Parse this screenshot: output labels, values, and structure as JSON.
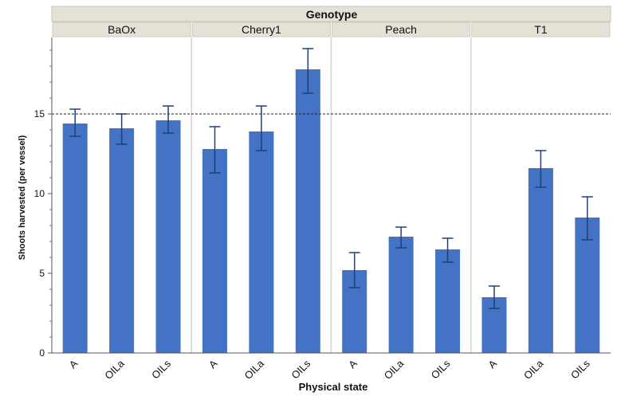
{
  "chart_data": {
    "type": "bar",
    "panel_header": "Genotype",
    "panels": [
      "BaOx",
      "Cherry1",
      "Peach",
      "T1"
    ],
    "categories": [
      "A",
      "OILa",
      "OILs"
    ],
    "series": [
      {
        "panel": "BaOx",
        "values": [
          14.4,
          14.1,
          14.6
        ],
        "err_low": [
          13.6,
          13.1,
          13.8
        ],
        "err_high": [
          15.3,
          15.0,
          15.5
        ]
      },
      {
        "panel": "Cherry1",
        "values": [
          12.8,
          13.9,
          17.8
        ],
        "err_low": [
          11.3,
          12.7,
          16.3
        ],
        "err_high": [
          14.2,
          15.5,
          19.1
        ]
      },
      {
        "panel": "Peach",
        "values": [
          5.2,
          7.3,
          6.5
        ],
        "err_low": [
          4.1,
          6.6,
          5.7
        ],
        "err_high": [
          6.3,
          7.9,
          7.2
        ]
      },
      {
        "panel": "T1",
        "values": [
          3.5,
          11.6,
          8.5
        ],
        "err_low": [
          2.8,
          10.4,
          7.1
        ],
        "err_high": [
          4.2,
          12.7,
          9.8
        ]
      }
    ],
    "reference_line": 15,
    "ylim": [
      0,
      19.8
    ],
    "yticks": [
      0,
      5,
      10,
      15
    ],
    "xlabel": "Physical state",
    "ylabel": "Shoots harvested (per vessel)",
    "bar_color": "#4472c4",
    "error_bar_color": "#1f3f7a",
    "header_color": "#e4e1d6",
    "grid": false
  }
}
